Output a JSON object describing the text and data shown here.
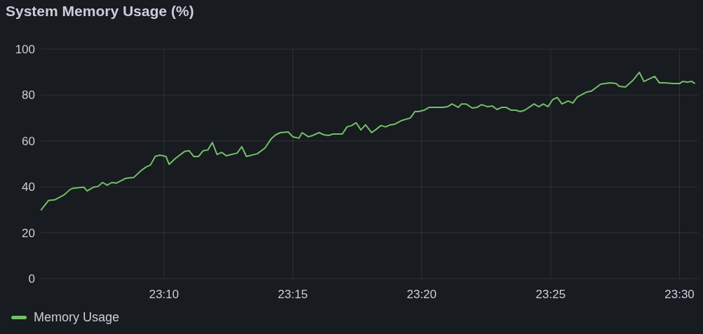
{
  "chart_data": {
    "type": "line",
    "title": "System Memory Usage (%)",
    "x": [
      23.087,
      23.092,
      23.096,
      23.102,
      23.106,
      23.108,
      23.115,
      23.117,
      23.121,
      23.124,
      23.127,
      23.13,
      23.133,
      23.136,
      23.142,
      23.147,
      23.152,
      23.155,
      23.158,
      23.161,
      23.164,
      23.168,
      23.17,
      23.174,
      23.18,
      23.183,
      23.186,
      23.189,
      23.192,
      23.195,
      23.198,
      23.201,
      23.204,
      23.207,
      23.214,
      23.217,
      23.22,
      23.227,
      23.232,
      23.236,
      23.239,
      23.242,
      23.247,
      23.25,
      23.254,
      23.256,
      23.26,
      23.263,
      23.267,
      23.27,
      23.273,
      23.276,
      23.282,
      23.285,
      23.288,
      23.291,
      23.294,
      23.297,
      23.301,
      23.304,
      23.307,
      23.31,
      23.313,
      23.316,
      23.32,
      23.326,
      23.329,
      23.331,
      23.335,
      23.338,
      23.343,
      23.347,
      23.35,
      23.353,
      23.357,
      23.359,
      23.362,
      23.366,
      23.369,
      23.372,
      23.376,
      23.379,
      23.382,
      23.385,
      23.388,
      23.391,
      23.394,
      23.397,
      23.4,
      23.406,
      23.409,
      23.412,
      23.415,
      23.418,
      23.421,
      23.424,
      23.428,
      23.431,
      23.434,
      23.44,
      23.443,
      23.449,
      23.455,
      23.459,
      23.461,
      23.465,
      23.47,
      23.474,
      23.477,
      23.481,
      23.484,
      23.487,
      23.49,
      23.496,
      23.5,
      23.502,
      23.505,
      23.508,
      23.51
    ],
    "series": [
      {
        "name": "Memory Usage",
        "color": "#73bf69",
        "values": [
          29.7,
          34,
          34.3,
          36.4,
          38.8,
          39.4,
          39.8,
          38.2,
          39.8,
          40.1,
          41.9,
          40.7,
          41.9,
          41.6,
          43.7,
          44,
          47.1,
          48.6,
          49.5,
          53.2,
          53.8,
          53.2,
          49.8,
          52.3,
          55.4,
          55.7,
          53.2,
          53.2,
          55.7,
          56,
          59.3,
          54.1,
          55,
          53.5,
          54.7,
          57.5,
          53.2,
          54.4,
          56.9,
          60.9,
          62.7,
          63.6,
          63.9,
          61.8,
          61.2,
          63.6,
          61.8,
          62.4,
          63.6,
          62.7,
          62.4,
          63,
          63,
          66.1,
          66.7,
          67.9,
          64.8,
          67,
          63.6,
          65.1,
          66.7,
          66.1,
          67,
          67.3,
          68.8,
          70,
          72.8,
          72.8,
          73.4,
          74.6,
          74.6,
          74.6,
          74.9,
          76.1,
          74.6,
          76.1,
          76.1,
          74.3,
          74.6,
          75.8,
          74.9,
          75.2,
          73.7,
          74.6,
          74.6,
          73.4,
          73.4,
          72.8,
          73.4,
          76.1,
          74.9,
          76.1,
          74.9,
          78,
          78.9,
          76.1,
          77.4,
          76.5,
          79.2,
          81.3,
          81.7,
          84.7,
          85.3,
          85,
          83.8,
          83.5,
          86.5,
          89.9,
          85.9,
          87.2,
          88.1,
          85.3,
          85.3,
          85,
          85,
          85.9,
          85.6,
          85.9,
          85
        ]
      }
    ],
    "xlim": [
      23.087,
      23.512
    ],
    "xticks": [
      {
        "value": 23.1667,
        "label": "23:10"
      },
      {
        "value": 23.25,
        "label": "23:15"
      },
      {
        "value": 23.3333,
        "label": "23:20"
      },
      {
        "value": 23.4167,
        "label": "23:25"
      },
      {
        "value": 23.5,
        "label": "23:30"
      }
    ],
    "ylim": [
      0,
      100
    ],
    "yticks": [
      0,
      20,
      40,
      60,
      80,
      100
    ],
    "grid": true,
    "legend": "bottom",
    "marker": "none",
    "line_style": "solid"
  }
}
